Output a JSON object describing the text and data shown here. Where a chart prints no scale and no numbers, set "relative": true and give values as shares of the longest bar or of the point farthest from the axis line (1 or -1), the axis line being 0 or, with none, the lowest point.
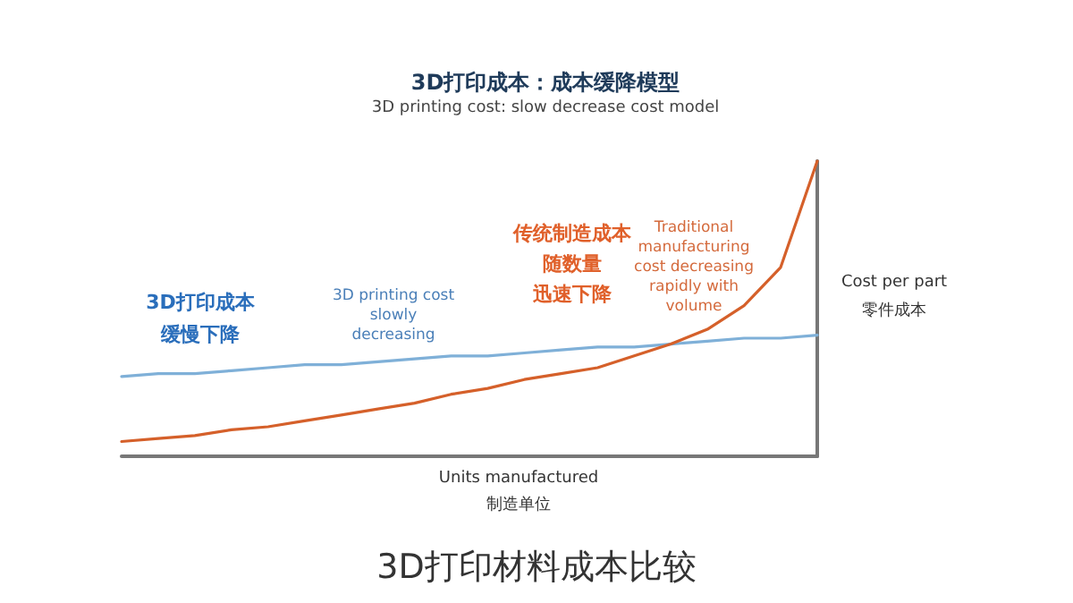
{
  "chart_data": {
    "type": "line",
    "relative": true,
    "title": "3D打印成本：成本缓降模型",
    "subtitle": "3D printing cost: slow decrease cost model",
    "xlabel": "Units manufactured\n制造单位",
    "ylabel": "Cost per part\n零件成本",
    "categories": [
      null,
      null,
      null,
      null,
      null,
      null,
      null,
      null,
      null,
      null,
      null,
      null,
      null,
      null,
      null,
      null,
      null,
      null,
      null,
      null
    ],
    "series": [
      {
        "color": "#7fb0d8",
        "values": [
          0.27,
          0.28,
          0.28,
          0.29,
          0.3,
          0.31,
          0.31,
          0.32,
          0.33,
          0.34,
          0.34,
          0.35,
          0.36,
          0.37,
          0.37,
          0.38,
          0.39,
          0.4,
          0.4,
          0.41
        ]
      },
      {
        "color": "#d5602a",
        "values": [
          0.05,
          0.06,
          0.07,
          0.09,
          0.1,
          0.12,
          0.14,
          0.16,
          0.18,
          0.21,
          0.23,
          0.26,
          0.28,
          0.3,
          0.34,
          0.38,
          0.43,
          0.51,
          0.64,
          1
        ]
      }
    ],
    "annotations": [
      "3D打印成本",
      "缓慢下降",
      "3D printing cost\nslowly\ndecreasing",
      "传统制造成本",
      "随数量",
      "迅速下降",
      "Traditional\nmanufacturing\ncost decreasing\nrapidly with\nvolume",
      "3D打印材料成本比较"
    ],
    "grid": false,
    "marker": "none",
    "line_style": "solid"
  }
}
